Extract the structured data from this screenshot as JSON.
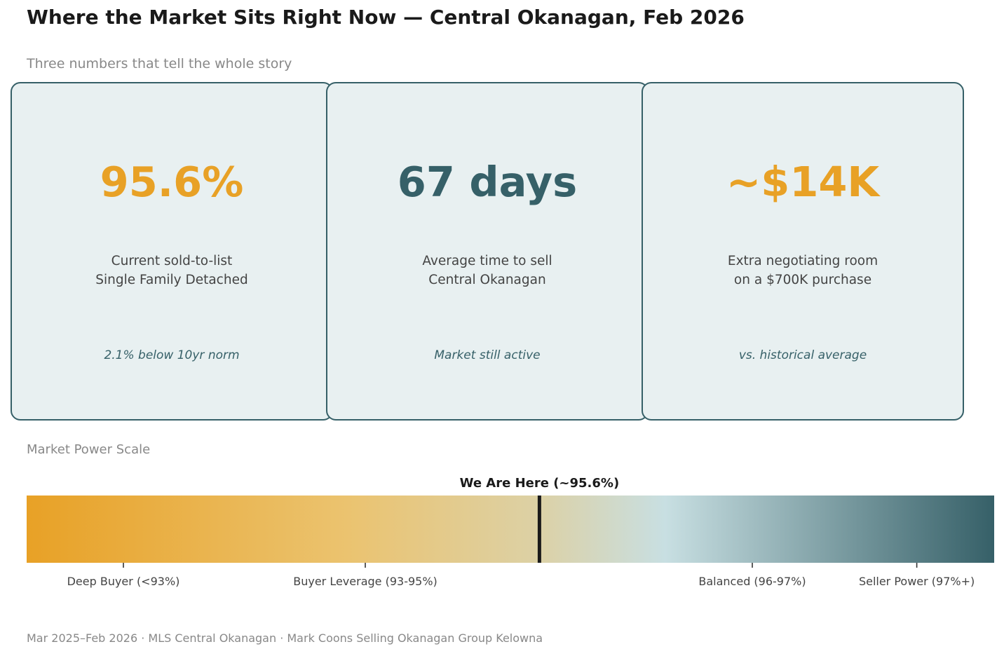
{
  "title": "Where the Market Sits Right Now — Central Okanagan, Feb 2026",
  "subtitle": "Three numbers that tell the whole story",
  "colors": {
    "accent_orange": "#E8A126",
    "accent_teal": "#366068",
    "card_background": "#E8F0F1"
  },
  "cards": [
    {
      "value": "95.6%",
      "value_color": "#E8A126",
      "desc_line1": "Current sold-to-list",
      "desc_line2": "Single Family Detached",
      "note": "2.1% below 10yr norm"
    },
    {
      "value": "67 days",
      "value_color": "#366068",
      "desc_line1": "Average time to sell",
      "desc_line2": "Central Okanagan",
      "note": "Market still active"
    },
    {
      "value": "~$14K",
      "value_color": "#E8A126",
      "desc_line1": "Extra negotiating room",
      "desc_line2": "on a $700K purchase",
      "note": "vs. historical average"
    }
  ],
  "scale_label": "Market Power Scale",
  "footer": "Mar 2025–Feb 2026  ·  MLS Central Okanagan  ·  Mark Coons Selling Okanagan Group Kelowna",
  "chart_data": {
    "type": "gradient-scale",
    "x_range": [
      0,
      1
    ],
    "gradient_stops": [
      {
        "offset": 0.0,
        "color": "#E8A126"
      },
      {
        "offset": 0.33,
        "color": "#EBC36F"
      },
      {
        "offset": 0.53,
        "color": "#DCD1A6"
      },
      {
        "offset": 0.66,
        "color": "#C8DFE2"
      },
      {
        "offset": 1.0,
        "color": "#366068"
      }
    ],
    "marker": {
      "position": 0.53,
      "label": "We Are Here (~95.6%)"
    },
    "ticks": [
      {
        "position": 0.1,
        "label": "Deep Buyer (<93%)"
      },
      {
        "position": 0.35,
        "label": "Buyer Leverage (93-95%)"
      },
      {
        "position": 0.75,
        "label": "Balanced (96-97%)"
      },
      {
        "position": 0.92,
        "label": "Seller Power (97%+)"
      }
    ]
  }
}
